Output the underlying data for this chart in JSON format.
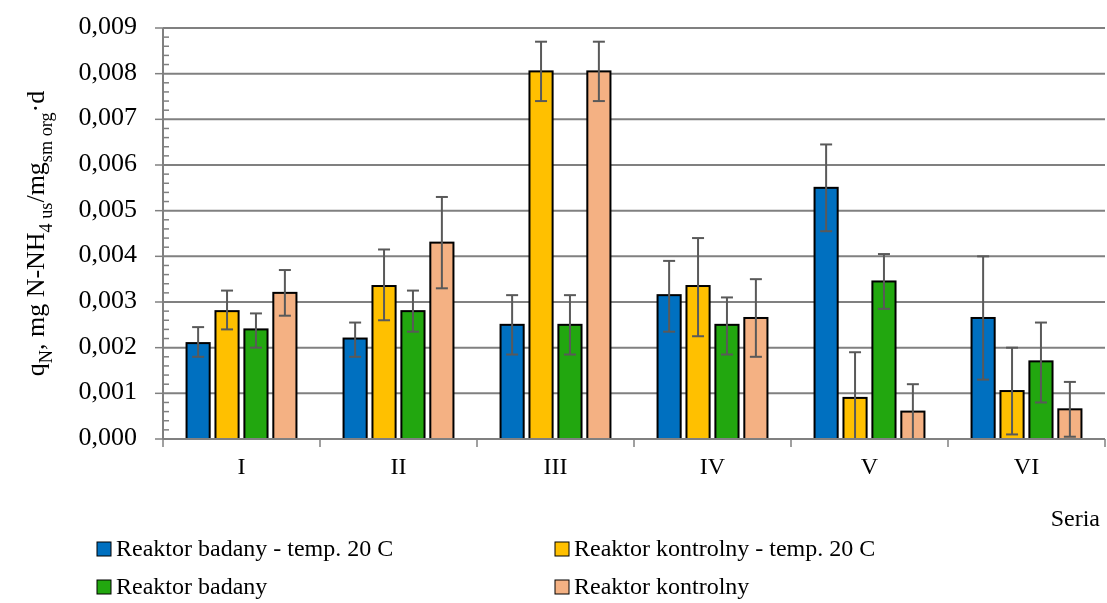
{
  "chart_data": {
    "type": "bar",
    "xlabel": "Seria",
    "ylabel": "q$_{N}$, mg N-NH$_{4 us}$/mg$_{sm org}$·d",
    "categories": [
      "I",
      "II",
      "III",
      "IV",
      "V",
      "VI"
    ],
    "series": [
      {
        "name": "Reaktor badany - temp. 20 C",
        "color": "#0070c0",
        "values": [
          0.0021,
          0.0022,
          0.0025,
          0.00315,
          0.0055,
          0.00265
        ],
        "errors": [
          [
            0.0018,
            0.00245
          ],
          [
            0.0018,
            0.00255
          ],
          [
            0.00185,
            0.00315
          ],
          [
            0.00235,
            0.0039
          ],
          [
            0.00455,
            0.00645
          ],
          [
            0.0013,
            0.004
          ]
        ]
      },
      {
        "name": "Reaktor kontrolny - temp. 20 C",
        "color": "#ffc000",
        "values": [
          0.0028,
          0.00335,
          0.00805,
          0.00335,
          0.0009,
          0.00105
        ],
        "errors": [
          [
            0.0024,
            0.00325
          ],
          [
            0.0026,
            0.00415
          ],
          [
            0.0074,
            0.0087
          ],
          [
            0.00225,
            0.0044
          ],
          [
            0,
            0.0019
          ],
          [
            0.0001,
            0.002
          ]
        ]
      },
      {
        "name": "Reaktor badany",
        "color": "#22a70f",
        "values": [
          0.0024,
          0.0028,
          0.0025,
          0.0025,
          0.00345,
          0.0017
        ],
        "errors": [
          [
            0.002,
            0.00275
          ],
          [
            0.00235,
            0.00325
          ],
          [
            0.00185,
            0.00315
          ],
          [
            0.00185,
            0.0031
          ],
          [
            0.00285,
            0.00405
          ],
          [
            0.0008,
            0.00255
          ]
        ]
      },
      {
        "name": "Reaktor kontrolny",
        "color": "#f4b183",
        "values": [
          0.0032,
          0.0043,
          0.00805,
          0.00265,
          0.0006,
          0.00065
        ],
        "errors": [
          [
            0.0027,
            0.0037
          ],
          [
            0.0033,
            0.0053
          ],
          [
            0.0074,
            0.0087
          ],
          [
            0.0018,
            0.0035
          ],
          [
            0,
            0.0012
          ],
          [
            5e-05,
            0.00125
          ]
        ]
      }
    ],
    "ylim": [
      0,
      0.009
    ],
    "yticks": [
      {
        "value": 0,
        "label": "0,000"
      },
      {
        "value": 0.0002,
        "label": null
      },
      {
        "value": 0.0004,
        "label": null
      },
      {
        "value": 0.0006,
        "label": null
      },
      {
        "value": 0.0008,
        "label": null
      },
      {
        "value": 0.001,
        "label": "0,001"
      },
      {
        "value": 0.0012,
        "label": null
      },
      {
        "value": 0.0014,
        "label": null
      },
      {
        "value": 0.0016,
        "label": null
      },
      {
        "value": 0.0018,
        "label": null
      },
      {
        "value": 0.002,
        "label": "0,002"
      },
      {
        "value": 0.0022,
        "label": null
      },
      {
        "value": 0.0024,
        "label": null
      },
      {
        "value": 0.0026,
        "label": null
      },
      {
        "value": 0.0028,
        "label": null
      },
      {
        "value": 0.003,
        "label": "0,003"
      },
      {
        "value": 0.0032,
        "label": null
      },
      {
        "value": 0.0034,
        "label": null
      },
      {
        "value": 0.0036,
        "label": null
      },
      {
        "value": 0.0038,
        "label": null
      },
      {
        "value": 0.004,
        "label": "0,004"
      },
      {
        "value": 0.0042,
        "label": null
      },
      {
        "value": 0.0044,
        "label": null
      },
      {
        "value": 0.0046,
        "label": null
      },
      {
        "value": 0.0048,
        "label": null
      },
      {
        "value": 0.005,
        "label": "0,005"
      },
      {
        "value": 0.0052,
        "label": null
      },
      {
        "value": 0.0054,
        "label": null
      },
      {
        "value": 0.0056,
        "label": null
      },
      {
        "value": 0.0058,
        "label": null
      },
      {
        "value": 0.006,
        "label": "0,006"
      },
      {
        "value": 0.0062,
        "label": null
      },
      {
        "value": 0.0064,
        "label": null
      },
      {
        "value": 0.0066,
        "label": null
      },
      {
        "value": 0.0068,
        "label": null
      },
      {
        "value": 0.007,
        "label": "0,007"
      },
      {
        "value": 0.0072,
        "label": null
      },
      {
        "value": 0.0074,
        "label": null
      },
      {
        "value": 0.0076,
        "label": null
      },
      {
        "value": 0.0078,
        "label": null
      },
      {
        "value": 0.008,
        "label": "0,008"
      },
      {
        "value": 0.0082,
        "label": null
      },
      {
        "value": 0.0084,
        "label": null
      },
      {
        "value": 0.0086,
        "label": null
      },
      {
        "value": 0.0088,
        "label": null
      },
      {
        "value": 0.009,
        "label": "0,009"
      }
    ],
    "grid": "y",
    "legend": "bottom"
  }
}
